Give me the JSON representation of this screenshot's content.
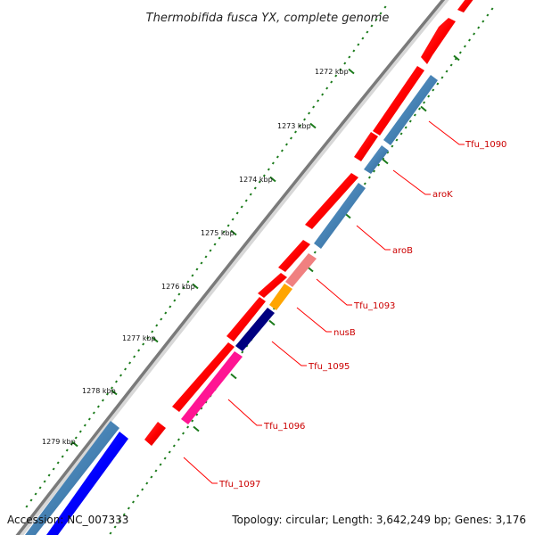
{
  "title": "Thermobifida fusca YX, complete genome",
  "footer": {
    "accession": "Accession: NC_007333",
    "summary": "Topology: circular; Length: 3,642,249 bp; Genes: 3,176"
  },
  "scale_labels": [
    "1272 kbp",
    "1273 kbp",
    "1274 kbp",
    "1275 kbp",
    "1276 kbp",
    "1277 kbp",
    "1278 kbp",
    "1279 kbp"
  ],
  "gene_labels": [
    "Tfu_1090",
    "aroK",
    "aroB",
    "Tfu_1093",
    "nusB",
    "Tfu_1095",
    "Tfu_1096",
    "Tfu_1097"
  ],
  "colors": {
    "backbone": "#808080",
    "tick": "#1a7a1a",
    "forward_gene": "#ff0000",
    "steelblue_gene": "#4682b4",
    "salmon_gene": "#f08080",
    "orange_gene": "#ffa500",
    "navy_gene": "#000080",
    "pink_gene": "#ff1493",
    "blue_gene": "#0000ff",
    "label": "#cc0000"
  }
}
